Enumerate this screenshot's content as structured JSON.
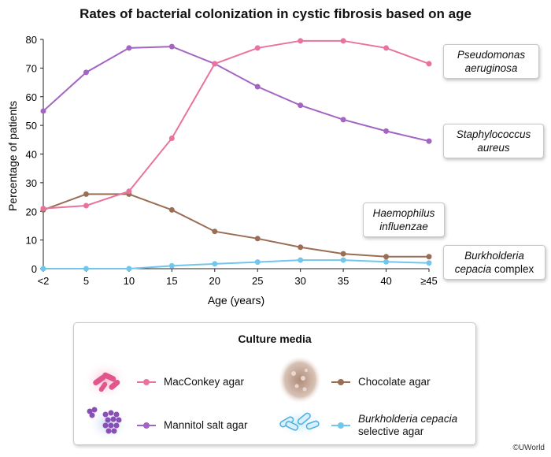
{
  "title": "Rates of bacterial colonization in cystic fibrosis based on age",
  "chart_data": {
    "type": "line",
    "xlabel": "Age (years)",
    "ylabel": "Percentage of patients",
    "categories": [
      "<2",
      "5",
      "10",
      "15",
      "20",
      "25",
      "30",
      "35",
      "40",
      "≥45"
    ],
    "ylim": [
      0,
      80
    ],
    "yticks": [
      0,
      10,
      20,
      30,
      40,
      50,
      60,
      70,
      80
    ],
    "series": [
      {
        "name": "Pseudomonas aeruginosa",
        "color": "#e8739f",
        "values": [
          21,
          22,
          27,
          45.5,
          71.5,
          77,
          79.5,
          79.5,
          77,
          71.5
        ]
      },
      {
        "name": "Staphylococcus aureus",
        "color": "#a365c2",
        "values": [
          55,
          68.5,
          77,
          77.5,
          71.5,
          63.5,
          57,
          52,
          48,
          44.5
        ]
      },
      {
        "name": "Haemophilus influenzae",
        "color": "#9a6e55",
        "values": [
          20.5,
          26,
          26,
          20.5,
          13,
          10.5,
          7.5,
          5.2,
          4.2,
          4.2
        ]
      },
      {
        "name": "Burkholderia cepacia complex",
        "color": "#72c6ec",
        "values": [
          0,
          0,
          0,
          1,
          1.7,
          2.3,
          3,
          3,
          2.4,
          2
        ]
      }
    ]
  },
  "callouts": {
    "pseudomonas": {
      "line1": "Pseudomonas",
      "line2": "aeruginosa"
    },
    "staphylococcus": {
      "line1": "Staphylococcus",
      "line2": "aureus"
    },
    "haemophilus": {
      "line1": "Haemophilus",
      "line2": "influenzae"
    },
    "burkholderia": {
      "line1": "Burkholderia",
      "line2a": "cepacia",
      "line2b": " complex"
    }
  },
  "legend": {
    "title": "Culture media",
    "items": [
      {
        "label": "MacConkey agar",
        "color": "#e8739f",
        "icon": "rod-bacteria-icon"
      },
      {
        "label": "Chocolate agar",
        "color": "#9a6e55",
        "icon": "chocolate-agar-icon"
      },
      {
        "label": "Mannitol salt agar",
        "color": "#a365c2",
        "icon": "cocci-cluster-icon"
      },
      {
        "label_italic": "Burkholderia cepacia",
        "label_rest": "selective agar",
        "color": "#72c6ec",
        "icon": "blue-rod-bacteria-icon"
      }
    ]
  },
  "credit": "©UWorld"
}
